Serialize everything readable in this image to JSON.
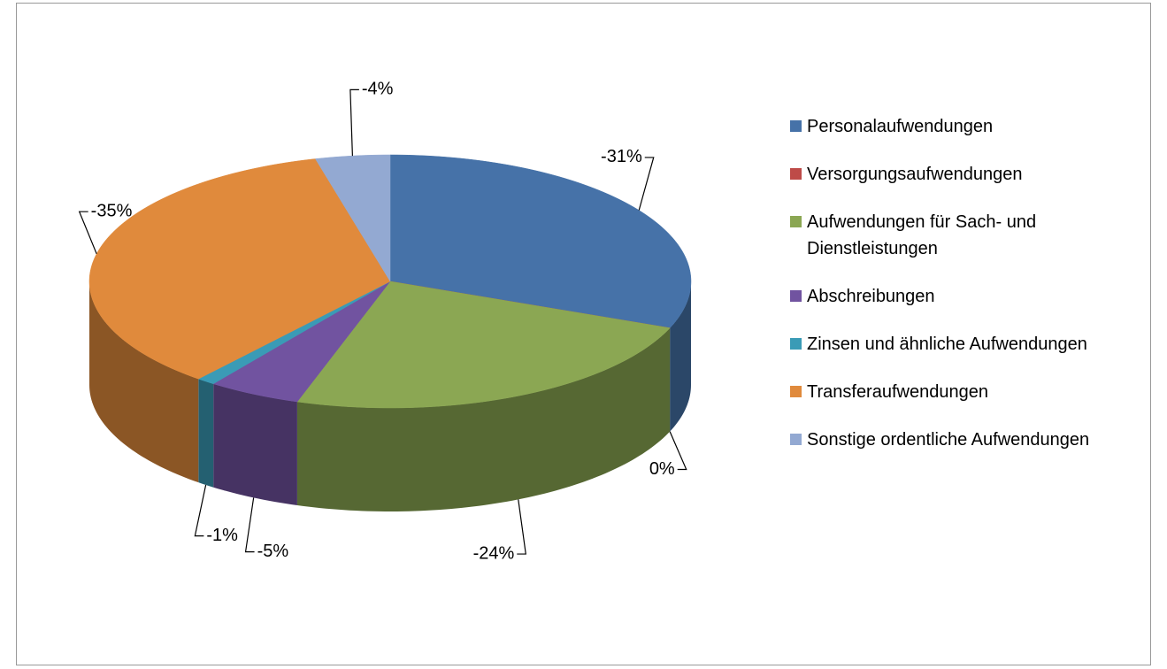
{
  "chart_data": {
    "type": "pie",
    "categories": [
      "Personalaufwendungen",
      "Versorgungsaufwendungen",
      "Aufwendungen für Sach- und Dienstleistungen",
      "Abschreibungen",
      "Zinsen und ähnliche Aufwendungen",
      "Transferaufwendungen",
      "Sonstige ordentliche Aufwendungen"
    ],
    "values": [
      -31,
      0,
      -24,
      -5,
      -1,
      -35,
      -4
    ],
    "value_labels": [
      "-31%",
      "0%",
      "-24%",
      "-5%",
      "-1%",
      "-35%",
      "-4%"
    ],
    "colors": [
      "#4672a8",
      "#be4b48",
      "#8ba753",
      "#7153a0",
      "#3a9bb6",
      "#e08a3c",
      "#93a9d2"
    ],
    "legend": "right"
  }
}
